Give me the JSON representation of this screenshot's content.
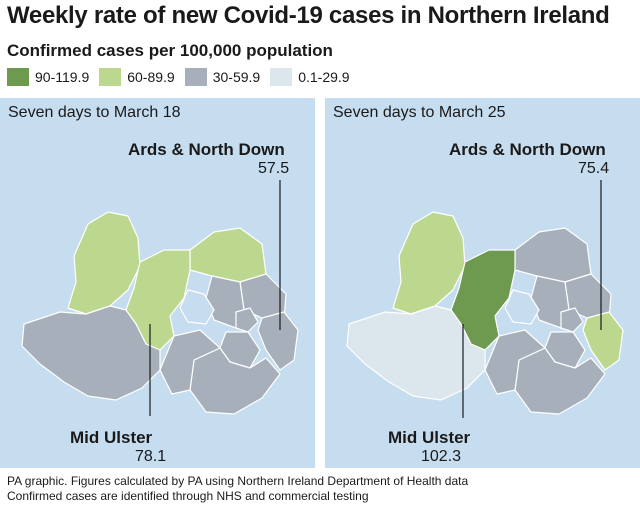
{
  "title": "Weekly rate of new Covid-19 cases in Northern Ireland",
  "subtitle": "Confirmed cases per 100,000 population",
  "legend": [
    {
      "label": "90-119.9",
      "color": "#6d9a4f"
    },
    {
      "label": "60-89.9",
      "color": "#bcd88f"
    },
    {
      "label": "30-59.9",
      "color": "#a6afba"
    },
    {
      "label": "0.1-29.9",
      "color": "#dbe6ed"
    }
  ],
  "panels": [
    {
      "title": "Seven days to March 18",
      "callouts": [
        {
          "name": "Ards & North Down",
          "value": "57.5"
        },
        {
          "name": "Mid Ulster",
          "value": "78.1"
        }
      ]
    },
    {
      "title": "Seven days to March 25",
      "callouts": [
        {
          "name": "Ards & North Down",
          "value": "75.4"
        },
        {
          "name": "Mid Ulster",
          "value": "102.3"
        }
      ]
    }
  ],
  "footer": {
    "line1": "PA graphic. Figures calculated by PA using Northern Ireland Department of Health data",
    "line2": "Confirmed cases are identified through NHS and commercial testing"
  }
}
